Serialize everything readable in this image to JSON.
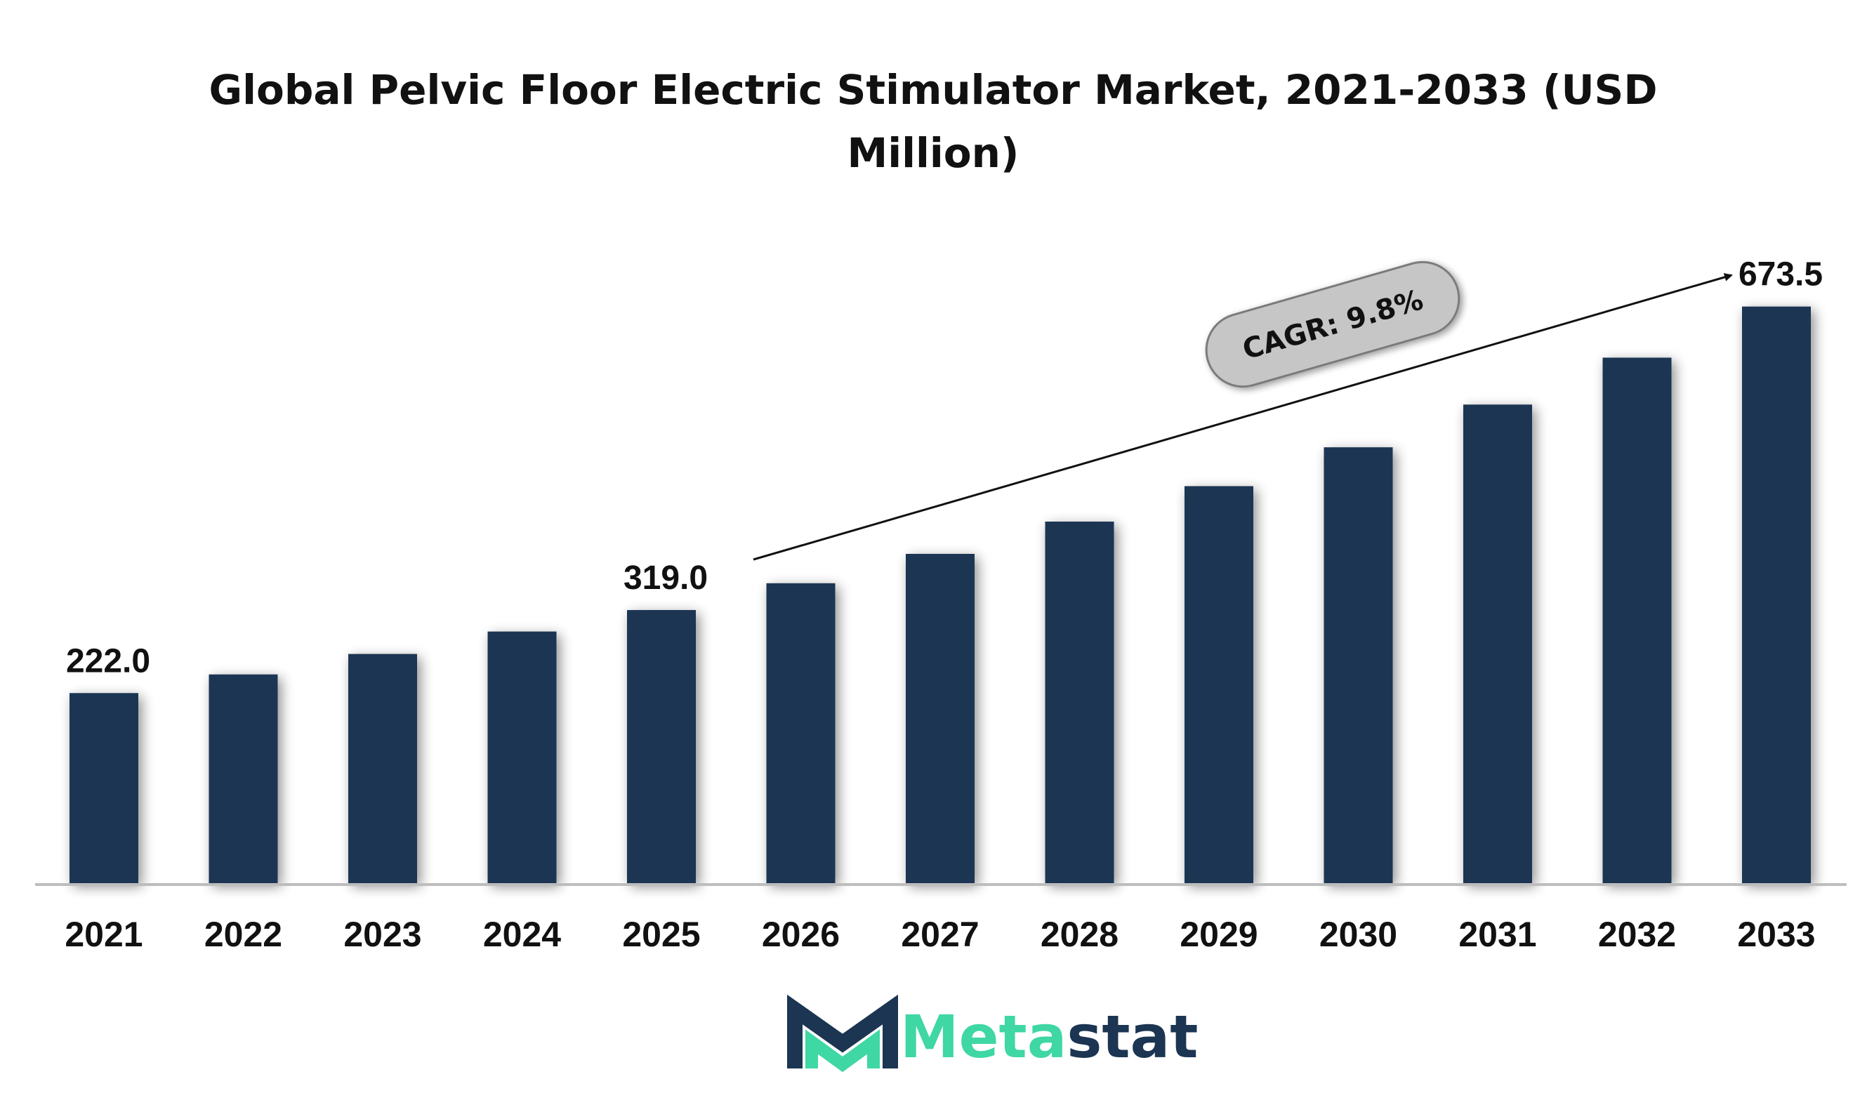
{
  "chart_data": {
    "type": "bar",
    "title_lines": [
      "Global Pelvic Floor Electric Stimulator Market, 2021-2033 (USD",
      "Million)"
    ],
    "categories": [
      "2021",
      "2022",
      "2023",
      "2024",
      "2025",
      "2026",
      "2027",
      "2028",
      "2029",
      "2030",
      "2031",
      "2032",
      "2033"
    ],
    "values": [
      222.0,
      243.8,
      267.7,
      293.9,
      319.0,
      350.3,
      384.6,
      422.3,
      463.7,
      509.1,
      559.0,
      613.8,
      673.5
    ],
    "data_labels": [
      {
        "category": "2021",
        "text": "222.0"
      },
      {
        "category": "2025",
        "text": "319.0"
      },
      {
        "category": "2033",
        "text": "673.5"
      }
    ],
    "annotation": {
      "text": "CAGR: 9.8%"
    },
    "ylim": [
      0,
      820
    ],
    "grid": false,
    "legend": "none",
    "bar_color": "#1b3552"
  },
  "brand": {
    "name_part1": "Meta",
    "name_part2": "stat",
    "color_part1": "#3fd7a4",
    "color_part2": "#1b3552"
  }
}
